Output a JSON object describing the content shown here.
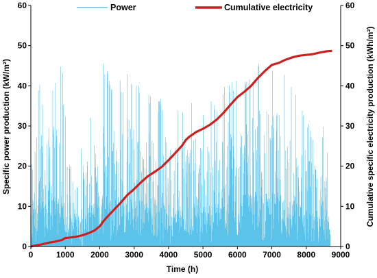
{
  "chart_data": {
    "type": "line",
    "xlabel": "Time (h)",
    "ylabel_left": "Specific power production (kW/m²)",
    "ylabel_right": "Cumulative specific electricity production (kWh/m²)",
    "xlim": [
      0,
      9000
    ],
    "ylim_left": [
      0,
      60
    ],
    "ylim_right": [
      0,
      60
    ],
    "x_ticks": [
      "0",
      "1000",
      "2000",
      "3000",
      "4000",
      "5000",
      "6000",
      "7000",
      "8000",
      "9000"
    ],
    "y_ticks_left": [
      "0",
      "10",
      "20",
      "30",
      "40",
      "50",
      "60"
    ],
    "y_ticks_right": [
      "0",
      "10",
      "20",
      "30",
      "40",
      "50",
      "60"
    ],
    "legend_position": "top",
    "grid": false,
    "series": [
      {
        "name": "Power",
        "axis": "left",
        "color": "#5bc3ea",
        "style": "dense hourly trace",
        "envelope": {
          "x": [
            0,
            120,
            250,
            380,
            520,
            700,
            850,
            950,
            1050,
            1200,
            1400,
            1600,
            1800,
            1950,
            2100,
            2250,
            2450,
            2650,
            2800,
            3000,
            3200,
            3400,
            3600,
            3800,
            4000,
            4200,
            4400,
            4600,
            4800,
            5000,
            5200,
            5400,
            5600,
            5800,
            6000,
            6200,
            6400,
            6600,
            6700,
            6800,
            7000,
            7200,
            7400,
            7600,
            7800,
            8000,
            8200,
            8400,
            8550,
            8700
          ],
          "peak": [
            30,
            36,
            42,
            36,
            40,
            42,
            44,
            48,
            20,
            22,
            24,
            30,
            36,
            42,
            48,
            43,
            43,
            42,
            44,
            41,
            40,
            40,
            37,
            37,
            36,
            36,
            37,
            37,
            36,
            33,
            36,
            37,
            40,
            42,
            43,
            43,
            44,
            46,
            48,
            46,
            45,
            45,
            43,
            40,
            36,
            33,
            28,
            24,
            36,
            10
          ]
        }
      },
      {
        "name": "Cumulative electricity",
        "axis": "right",
        "color": "#cc1f1f",
        "x": [
          0,
          100,
          300,
          500,
          700,
          900,
          1000,
          1100,
          1300,
          1500,
          1700,
          1850,
          2000,
          2100,
          2200,
          2400,
          2600,
          2800,
          3000,
          3200,
          3400,
          3600,
          3800,
          4000,
          4200,
          4400,
          4500,
          4600,
          4800,
          5000,
          5200,
          5400,
          5600,
          5800,
          6000,
          6200,
          6400,
          6600,
          6800,
          7000,
          7200,
          7400,
          7600,
          7800,
          8000,
          8200,
          8400,
          8600,
          8750
        ],
        "values": [
          0,
          0.2,
          0.5,
          0.9,
          1.2,
          1.6,
          2.1,
          2.2,
          2.4,
          2.8,
          3.4,
          4.0,
          5.0,
          6.2,
          7.2,
          9.0,
          10.8,
          12.8,
          14.3,
          16.0,
          17.5,
          18.6,
          19.8,
          21.5,
          23.3,
          25.2,
          26.5,
          27.3,
          28.5,
          29.3,
          30.3,
          31.6,
          33.3,
          35.3,
          37.2,
          38.5,
          40.0,
          42.0,
          43.7,
          45.2,
          45.7,
          46.5,
          47.1,
          47.5,
          47.7,
          47.9,
          48.3,
          48.6,
          48.7
        ]
      }
    ]
  }
}
